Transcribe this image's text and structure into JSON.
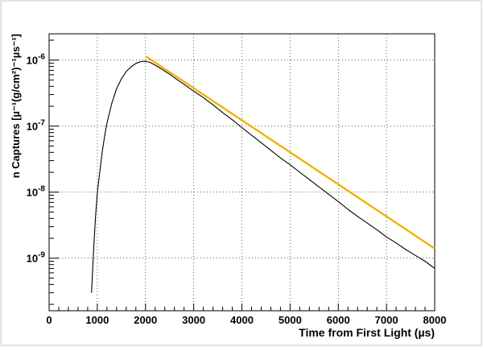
{
  "chart_data": {
    "type": "line",
    "xlabel": "Time from First Light (µs)",
    "ylabel": "n Captures [µ⁻¹(g/cm²)⁻¹µs⁻¹]",
    "xlim": [
      0,
      8000
    ],
    "ylim": [
      1.6e-10,
      2.5e-06
    ],
    "yscale": "log",
    "grid": true,
    "x_ticks": [
      0,
      1000,
      2000,
      3000,
      4000,
      5000,
      6000,
      7000,
      8000
    ],
    "x_tick_labels": [
      "0",
      "1000",
      "2000",
      "3000",
      "4000",
      "5000",
      "6000",
      "7000",
      "8000"
    ],
    "y_ticks": [
      1e-09,
      1e-08,
      1e-07,
      1e-06
    ],
    "y_tick_labels": [
      {
        "base": "10",
        "exp": "-9"
      },
      {
        "base": "10",
        "exp": "-8"
      },
      {
        "base": "10",
        "exp": "-7"
      },
      {
        "base": "10",
        "exp": "-6"
      }
    ],
    "series": [
      {
        "color": "#000000",
        "x": [
          880,
          920,
          960,
          1000,
          1050,
          1100,
          1150,
          1200,
          1300,
          1400,
          1500,
          1600,
          1700,
          1800,
          1900,
          2000,
          2100,
          2200,
          2300,
          2400,
          2500,
          2600,
          2700,
          2800,
          2900,
          3000,
          3200,
          3400,
          3600,
          3800,
          4000,
          4200,
          4400,
          4600,
          4800,
          5000,
          5200,
          5400,
          5600,
          5800,
          6000,
          6200,
          6400,
          6600,
          6800,
          7000,
          7200,
          7400,
          7600,
          7800,
          8000
        ],
        "y": [
          3e-10,
          1.2e-09,
          4e-09,
          1e-08,
          2e-08,
          4e-08,
          7e-08,
          1.1e-07,
          2.2e-07,
          3.7e-07,
          5.2e-07,
          6.7e-07,
          7.9e-07,
          8.9e-07,
          9.5e-07,
          9.6e-07,
          9.2e-07,
          8.4e-07,
          7.6e-07,
          6.8e-07,
          6.1e-07,
          5.4e-07,
          4.8e-07,
          4.3e-07,
          3.8e-07,
          3.4e-07,
          2.7e-07,
          2.1e-07,
          1.6e-07,
          1.25e-07,
          9.5e-08,
          7.3e-08,
          5.6e-08,
          4.3e-08,
          3.3e-08,
          2.6e-08,
          2e-08,
          1.55e-08,
          1.2e-08,
          9.3e-09,
          7.2e-09,
          5.5e-09,
          4.3e-09,
          3.4e-09,
          2.7e-09,
          2.1e-09,
          1.7e-09,
          1.35e-09,
          1.1e-09,
          9e-10,
          7e-10
        ]
      },
      {
        "color": "#f0b400",
        "x": [
          2000,
          8000
        ],
        "y": [
          1.15e-06,
          1.4e-09
        ]
      }
    ]
  }
}
